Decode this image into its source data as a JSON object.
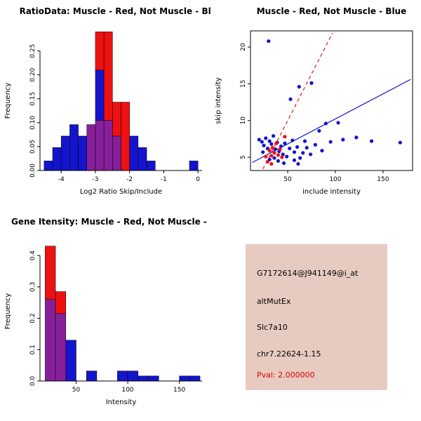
{
  "chart_colors": {
    "red": "#ee1111",
    "blue": "#1414cd",
    "purple": "#871f9b"
  },
  "chart_data": [
    {
      "type": "bar",
      "title": "RatioData: Muscle - Red, Not Muscle - Blue",
      "xlabel": "Log2 Ratio Skip/Include",
      "ylabel": "Frequency",
      "xlim": [
        -4.62,
        0.12
      ],
      "ylim": [
        0,
        0.292
      ],
      "xticks": [
        {
          "v": -4,
          "label": "-4"
        },
        {
          "v": -3,
          "label": "-3"
        },
        {
          "v": -2,
          "label": "-2"
        },
        {
          "v": -1,
          "label": "-1"
        },
        {
          "v": 0,
          "label": "0"
        }
      ],
      "yticks": [
        {
          "v": 0,
          "label": "0.00"
        },
        {
          "v": 0.05,
          "label": "0.05"
        },
        {
          "v": 0.1,
          "label": "0.10"
        },
        {
          "v": 0.15,
          "label": "0.15"
        },
        {
          "v": 0.2,
          "label": "0.20"
        },
        {
          "v": 0.25,
          "label": "0.25"
        }
      ],
      "bin_width": 0.25,
      "bars": [
        {
          "x": -4.5,
          "segments": [
            [
              "blue",
              0,
              0.02
            ]
          ]
        },
        {
          "x": -4.25,
          "segments": [
            [
              "blue",
              0,
              0.048
            ]
          ]
        },
        {
          "x": -4.0,
          "segments": [
            [
              "blue",
              0,
              0.072
            ]
          ]
        },
        {
          "x": -3.75,
          "segments": [
            [
              "blue",
              0,
              0.096
            ]
          ]
        },
        {
          "x": -3.5,
          "segments": [
            [
              "blue",
              0,
              0.072
            ]
          ]
        },
        {
          "x": -3.25,
          "segments": [
            [
              "purple",
              0,
              0.096
            ]
          ]
        },
        {
          "x": -3.0,
          "segments": [
            [
              "purple",
              0,
              0.105
            ],
            [
              "blue",
              0.105,
              0.21
            ],
            [
              "red",
              0.21,
              0.29
            ]
          ]
        },
        {
          "x": -2.75,
          "segments": [
            [
              "purple",
              0,
              0.105
            ],
            [
              "red",
              0.105,
              0.29
            ]
          ]
        },
        {
          "x": -2.5,
          "segments": [
            [
              "purple",
              0,
              0.072
            ],
            [
              "red",
              0.072,
              0.143
            ]
          ]
        },
        {
          "x": -2.25,
          "segments": [
            [
              "red",
              0,
              0.143
            ]
          ]
        },
        {
          "x": -2.0,
          "segments": [
            [
              "blue",
              0,
              0.072
            ]
          ]
        },
        {
          "x": -1.75,
          "segments": [
            [
              "blue",
              0,
              0.048
            ]
          ]
        },
        {
          "x": -1.5,
          "segments": [
            [
              "blue",
              0,
              0.02
            ]
          ]
        },
        {
          "x": -0.25,
          "segments": [
            [
              "blue",
              0,
              0.02
            ]
          ]
        }
      ]
    },
    {
      "type": "scatter",
      "title": "Muscle - Red, Not Muscle - Blue",
      "xlabel": "include intensity",
      "ylabel": "skip intensity",
      "xlim": [
        11,
        181
      ],
      "ylim": [
        3.2,
        22.2
      ],
      "xticks": [
        {
          "v": 50,
          "label": "50"
        },
        {
          "v": 100,
          "label": "100"
        },
        {
          "v": 150,
          "label": "150"
        }
      ],
      "yticks": [
        {
          "v": 5,
          "label": "5"
        },
        {
          "v": 10,
          "label": "10"
        },
        {
          "v": 15,
          "label": "15"
        },
        {
          "v": 20,
          "label": "20"
        }
      ],
      "series": [
        {
          "name": "not_muscle",
          "color": "blue",
          "points": [
            [
              30,
              20.8
            ],
            [
              62,
              14.6
            ],
            [
              75,
              15.1
            ],
            [
              53,
              12.9
            ],
            [
              90,
              9.6
            ],
            [
              103,
              9.7
            ],
            [
              83,
              8.6
            ],
            [
              95,
              7.1
            ],
            [
              108,
              7.4
            ],
            [
              122,
              7.7
            ],
            [
              138,
              7.2
            ],
            [
              168,
              7.0
            ],
            [
              20,
              7.4
            ],
            [
              23,
              7.1
            ],
            [
              25,
              6.6
            ],
            [
              27,
              7.6
            ],
            [
              29,
              6.2
            ],
            [
              31,
              7.2
            ],
            [
              33,
              6.8
            ],
            [
              35,
              7.9
            ],
            [
              37,
              6.1
            ],
            [
              39,
              7.0
            ],
            [
              41,
              5.8
            ],
            [
              43,
              6.5
            ],
            [
              45,
              5.4
            ],
            [
              47,
              6.9
            ],
            [
              49,
              5.1
            ],
            [
              52,
              6.2
            ],
            [
              55,
              7.3
            ],
            [
              57,
              5.7
            ],
            [
              60,
              6.4
            ],
            [
              63,
              4.9
            ],
            [
              66,
              5.6
            ],
            [
              70,
              6.3
            ],
            [
              36,
              4.9
            ],
            [
              40,
              4.5
            ],
            [
              46,
              4.2
            ],
            [
              57,
              4.6
            ],
            [
              61,
              4.1
            ],
            [
              74,
              5.4
            ],
            [
              79,
              6.7
            ],
            [
              86,
              5.9
            ],
            [
              24,
              5.7
            ],
            [
              31,
              4.7
            ],
            [
              68,
              7.2
            ]
          ]
        },
        {
          "name": "muscle",
          "color": "red",
          "points": [
            [
              27,
              5.1
            ],
            [
              29,
              4.4
            ],
            [
              31,
              5.9
            ],
            [
              33,
              5.2
            ],
            [
              34,
              6.3
            ],
            [
              36,
              5.6
            ],
            [
              38,
              6.9
            ],
            [
              40,
              5.3
            ],
            [
              42,
              6.1
            ],
            [
              44,
              5.0
            ],
            [
              47,
              7.8
            ],
            [
              33,
              4.1
            ]
          ]
        }
      ],
      "lines": [
        {
          "color": "red",
          "dash": true,
          "x1": 24,
          "y1": 3.4,
          "x2": 97,
          "y2": 21.9
        },
        {
          "color": "blue",
          "dash": false,
          "x1": 13,
          "y1": 4.3,
          "x2": 179,
          "y2": 15.6
        }
      ]
    },
    {
      "type": "bar",
      "title": "Gene Itensity: Muscle - Red, Not Muscle - Blue",
      "xlabel": "Intensity",
      "ylabel": "Frequency",
      "xlim": [
        15,
        172
      ],
      "ylim": [
        0,
        0.445
      ],
      "xticks": [
        {
          "v": 50,
          "label": "50"
        },
        {
          "v": 100,
          "label": "100"
        },
        {
          "v": 150,
          "label": "150"
        }
      ],
      "yticks": [
        {
          "v": 0,
          "label": "0.0"
        },
        {
          "v": 0.1,
          "label": "0.1"
        },
        {
          "v": 0.2,
          "label": "0.2"
        },
        {
          "v": 0.3,
          "label": "0.3"
        },
        {
          "v": 0.4,
          "label": "0.4"
        }
      ],
      "bin_width": 10,
      "bars": [
        {
          "x": 20,
          "segments": [
            [
              "purple",
              0,
              0.26
            ],
            [
              "red",
              0.26,
              0.43
            ]
          ]
        },
        {
          "x": 30,
          "segments": [
            [
              "purple",
              0,
              0.215
            ],
            [
              "red",
              0.215,
              0.285
            ]
          ]
        },
        {
          "x": 40,
          "segments": [
            [
              "blue",
              0,
              0.13
            ]
          ]
        },
        {
          "x": 60,
          "segments": [
            [
              "blue",
              0,
              0.032
            ]
          ]
        },
        {
          "x": 90,
          "segments": [
            [
              "blue",
              0,
              0.032
            ]
          ]
        },
        {
          "x": 100,
          "segments": [
            [
              "blue",
              0,
              0.032
            ]
          ]
        },
        {
          "x": 110,
          "segments": [
            [
              "blue",
              0,
              0.016
            ]
          ]
        },
        {
          "x": 120,
          "segments": [
            [
              "blue",
              0,
              0.016
            ]
          ]
        },
        {
          "x": 150,
          "segments": [
            [
              "blue",
              0,
              0.016
            ]
          ]
        },
        {
          "x": 160,
          "segments": [
            [
              "blue",
              0,
              0.016
            ]
          ]
        }
      ]
    }
  ],
  "info_box": {
    "background": "#e8cbc0",
    "lines": [
      "G7172614@J941149@i_at",
      "altMutEx",
      "Slc7a10",
      "chr7.22624-1.15"
    ],
    "pval": "Pval: 2.000000",
    "pval_color": "#dd0000"
  }
}
